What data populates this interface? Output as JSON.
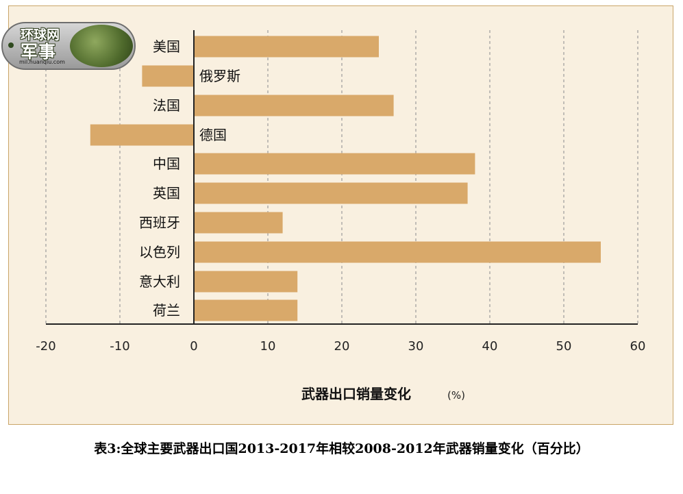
{
  "chart_data": {
    "type": "bar",
    "orientation": "horizontal",
    "categories": [
      "美国",
      "俄罗斯",
      "法国",
      "德国",
      "中国",
      "英国",
      "西班牙",
      "以色列",
      "意大利",
      "荷兰"
    ],
    "values": [
      25,
      -7,
      27,
      -14,
      38,
      37,
      12,
      55,
      14,
      14
    ],
    "xlabel": "武器出口销量变化",
    "xunit": "(%)",
    "xlim": [
      -20,
      60
    ],
    "xticks": [
      "-20",
      "-10",
      "0",
      "10",
      "20",
      "30",
      "40",
      "50",
      "60"
    ],
    "grid": "vertical dashed",
    "bar_color": "#d9a96a"
  },
  "logo": {
    "line1": "环球网",
    "line2": "军事",
    "url": "mil.huanqiu.com"
  },
  "caption": "表3:全球主要武器出口国2013-2017年相较2008-2012年武器销量变化（百分比）"
}
